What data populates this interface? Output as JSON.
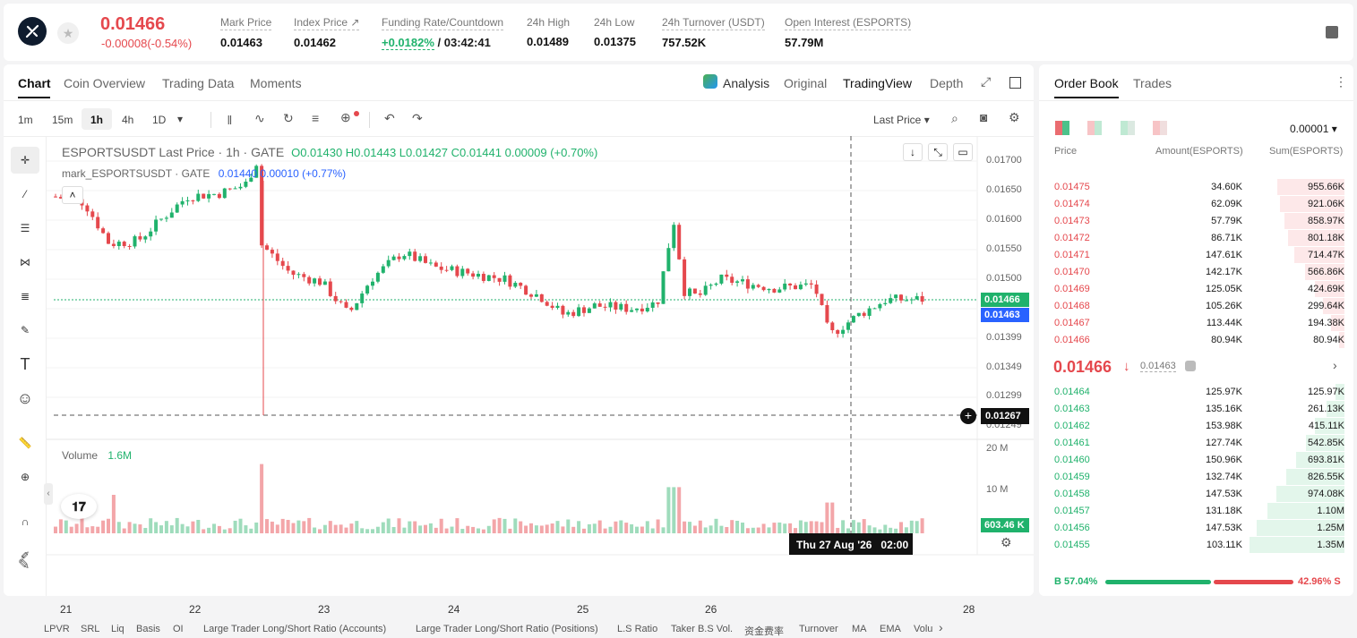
{
  "header": {
    "last_price": "0.01466",
    "change": "-0.00008(-0.54%)",
    "stats": [
      {
        "label": "Mark Price",
        "value": "0.01463"
      },
      {
        "label": "Index Price ↗",
        "value": "0.01462"
      },
      {
        "label": "Funding Rate/Countdown",
        "value_green": "+0.0182%",
        "value_rest": "/ 03:42:41"
      },
      {
        "label": "24h High",
        "value": "0.01489"
      },
      {
        "label": "24h Low",
        "value": "0.01375"
      },
      {
        "label": "24h Turnover (USDT)",
        "value": "757.52K"
      },
      {
        "label": "Open Interest (ESPORTS)",
        "value": "57.79M"
      }
    ]
  },
  "chart_tabs": [
    "Chart",
    "Coin Overview",
    "Trading Data",
    "Moments"
  ],
  "view_tabs": {
    "analysis": "Analysis",
    "original": "Original",
    "tradingview": "TradingView",
    "depth": "Depth"
  },
  "timeframes": [
    "1m",
    "15m",
    "1h",
    "4h",
    "1D"
  ],
  "price_type": "Last Price",
  "legend": {
    "line1_title": "ESPORTSUSDT Last Price · 1h · GATE",
    "line1_values": "O0.01430  H0.01443  L0.01427  C0.01441  0.00009 (+0.70%)",
    "line2_title": "mark_ESPORTSUSDT · GATE",
    "line2_values": "0.01440  0.00010 (+0.77%)"
  },
  "volume": {
    "label": "Volume",
    "value": "1.6M"
  },
  "y_ticks": [
    "0.01700",
    "0.01650",
    "0.01600",
    "0.01550",
    "0.01500",
    "0.01399",
    "0.01349",
    "0.01299",
    "0.01249"
  ],
  "price_tags": {
    "last": "0.01466",
    "mark": "0.01463",
    "cross": "0.01267",
    "vol": "603.46 K"
  },
  "vol_ticks": [
    "20 M",
    "10 M"
  ],
  "x_ticks": [
    "21",
    "22",
    "23",
    "24",
    "25",
    "26",
    "28"
  ],
  "crosshair_time": "Thu 27 Aug '26   02:00",
  "indicators": [
    "LPVR",
    "SRL",
    "Liq",
    "Basis",
    "OI",
    "Large Trader Long/Short Ratio (Accounts)",
    "Large Trader Long/Short Ratio (Positions)",
    "L.S Ratio",
    "Taker B.S Vol.",
    "资金费率",
    "Turnover",
    "MA",
    "EMA",
    "Volu"
  ],
  "orderbook": {
    "tabs": [
      "Order Book",
      "Trades"
    ],
    "precision": "0.00001",
    "headers": [
      "Price",
      "Amount(ESPORTS)",
      "Sum(ESPORTS)"
    ],
    "asks": [
      [
        "0.01475",
        "34.60K",
        "955.66K"
      ],
      [
        "0.01474",
        "62.09K",
        "921.06K"
      ],
      [
        "0.01473",
        "57.79K",
        "858.97K"
      ],
      [
        "0.01472",
        "86.71K",
        "801.18K"
      ],
      [
        "0.01471",
        "147.61K",
        "714.47K"
      ],
      [
        "0.01470",
        "142.17K",
        "566.86K"
      ],
      [
        "0.01469",
        "125.05K",
        "424.69K"
      ],
      [
        "0.01468",
        "105.26K",
        "299.64K"
      ],
      [
        "0.01467",
        "113.44K",
        "194.38K"
      ],
      [
        "0.01466",
        "80.94K",
        "80.94K"
      ]
    ],
    "mid_price": "0.01466",
    "mid_mark": "0.01463",
    "bids": [
      [
        "0.01464",
        "125.97K",
        "125.97K"
      ],
      [
        "0.01463",
        "135.16K",
        "261.13K"
      ],
      [
        "0.01462",
        "153.98K",
        "415.11K"
      ],
      [
        "0.01461",
        "127.74K",
        "542.85K"
      ],
      [
        "0.01460",
        "150.96K",
        "693.81K"
      ],
      [
        "0.01459",
        "132.74K",
        "826.55K"
      ],
      [
        "0.01458",
        "147.53K",
        "974.08K"
      ],
      [
        "0.01457",
        "131.18K",
        "1.10M"
      ],
      [
        "0.01456",
        "147.53K",
        "1.25M"
      ],
      [
        "0.01455",
        "103.11K",
        "1.35M"
      ]
    ],
    "buy_ratio": "B 57.04%",
    "sell_ratio": "42.96% S",
    "buy_fraction": 0.5704
  },
  "colors": {
    "up": "#20b26c",
    "down": "#e5484d",
    "mark": "#2962ff"
  }
}
